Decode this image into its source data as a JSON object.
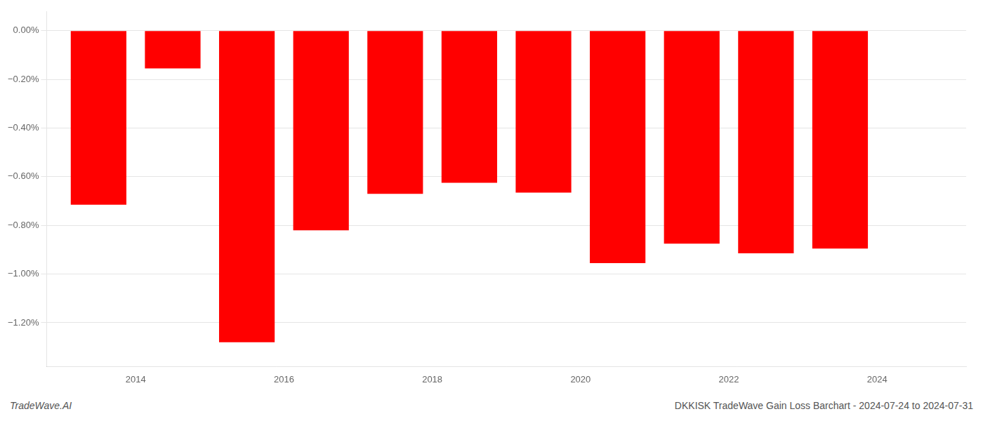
{
  "chart_data": {
    "type": "bar",
    "x": [
      2013.5,
      2014.5,
      2015.5,
      2016.5,
      2017.5,
      2018.5,
      2019.5,
      2020.5,
      2021.5,
      2022.5,
      2023.5
    ],
    "values": [
      -0.715,
      -0.155,
      -1.28,
      -0.82,
      -0.67,
      -0.625,
      -0.665,
      -0.955,
      -0.875,
      -0.915,
      -0.895
    ],
    "color": "#ff0000",
    "xlim": [
      2012.8,
      2025.2
    ],
    "xticks": [
      2014,
      2016,
      2018,
      2020,
      2022,
      2024
    ],
    "ylim": [
      -1.38,
      0.08
    ],
    "yticks": [
      {
        "value": 0.0,
        "label": "0.00%"
      },
      {
        "value": -0.2,
        "label": "−0.20%"
      },
      {
        "value": -0.4,
        "label": "−0.40%"
      },
      {
        "value": -0.6,
        "label": "−0.60%"
      },
      {
        "value": -0.8,
        "label": "−0.80%"
      },
      {
        "value": -1.0,
        "label": "−1.00%"
      },
      {
        "value": -1.2,
        "label": "−1.20%"
      }
    ],
    "grid": true,
    "annotations": [
      "TradeWave.AI",
      "DKKISK TradeWave Gain Loss Barchart - 2024-07-24 to 2024-07-31"
    ]
  }
}
